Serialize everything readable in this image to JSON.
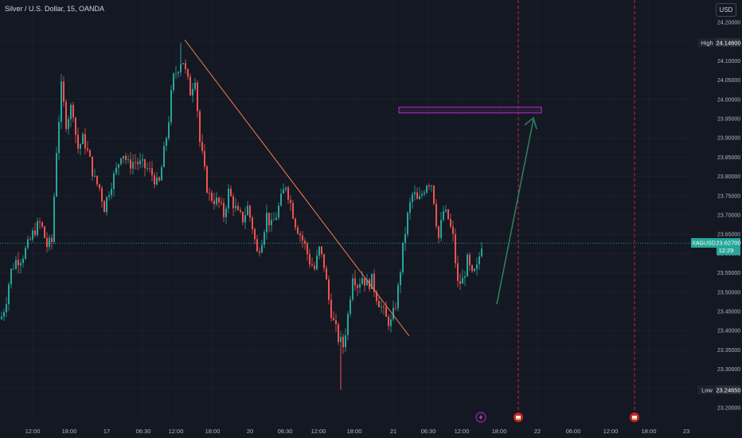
{
  "symbol_title": "Silver / U.S. Dollar, 15, OANDA",
  "currency_button": "USD",
  "ticker_label": "XAGUSD",
  "price_labels": {
    "high_tag": "High",
    "high_value": "24.14600",
    "low_tag": "Low",
    "low_value": "23.24650",
    "last_value": "23.62700",
    "countdown": "12:29"
  },
  "colors": {
    "background": "#141823",
    "grid": "#1f2330",
    "up": "#26a69a",
    "down": "#ef5350",
    "trendline": "#f57c54",
    "zone": "#9c27b0",
    "arrow": "#2e7d5b",
    "event_line": "#c62828",
    "axis_text": "#b2b5be",
    "last_price_bg": "#26a69a"
  },
  "icons": {
    "flash_event": "lightning-icon",
    "flag_event": "flag-icon"
  },
  "chart_data": {
    "type": "candlestick",
    "instrument": "XAGUSD",
    "interval": "15",
    "y_ticks": [
      "24.20000",
      "24.15000",
      "24.10000",
      "24.05000",
      "24.00000",
      "23.95000",
      "23.90000",
      "23.85000",
      "23.80000",
      "23.75000",
      "23.70000",
      "23.65000",
      "23.60000",
      "23.55000",
      "23.50000",
      "23.45000",
      "23.40000",
      "23.35000",
      "23.30000",
      "23.25000",
      "23.20000"
    ],
    "ylim": [
      23.18,
      24.225
    ],
    "x_ticks": [
      "12:00",
      "18:00",
      "17",
      "06:30",
      "12:00",
      "18:00",
      "20",
      "06:30",
      "12:00",
      "18:00",
      "21",
      "06:30",
      "12:00",
      "18:00",
      "22",
      "06:00",
      "12:00",
      "18:00",
      "23"
    ],
    "high": 24.146,
    "low": 23.2465,
    "last": 23.627,
    "close_path": [
      [
        0,
        23.43
      ],
      [
        6,
        23.47
      ],
      [
        12,
        23.55
      ],
      [
        18,
        23.58
      ],
      [
        26,
        23.59
      ],
      [
        34,
        23.62
      ],
      [
        42,
        23.66
      ],
      [
        50,
        23.68
      ],
      [
        58,
        23.62
      ],
      [
        64,
        23.63
      ],
      [
        70,
        23.87
      ],
      [
        76,
        24.03
      ],
      [
        82,
        23.94
      ],
      [
        90,
        23.99
      ],
      [
        96,
        23.87
      ],
      [
        104,
        23.9
      ],
      [
        112,
        23.84
      ],
      [
        118,
        23.79
      ],
      [
        124,
        23.77
      ],
      [
        130,
        23.72
      ],
      [
        138,
        23.78
      ],
      [
        146,
        23.82
      ],
      [
        152,
        23.87
      ],
      [
        160,
        23.83
      ],
      [
        168,
        23.84
      ],
      [
        176,
        23.83
      ],
      [
        184,
        23.82
      ],
      [
        192,
        23.8
      ],
      [
        198,
        23.77
      ],
      [
        204,
        23.85
      ],
      [
        210,
        23.93
      ],
      [
        216,
        24.05
      ],
      [
        222,
        24.08
      ],
      [
        228,
        24.11
      ],
      [
        232,
        24.07
      ],
      [
        238,
        24.02
      ],
      [
        244,
        24.06
      ],
      [
        250,
        23.89
      ],
      [
        254,
        23.84
      ],
      [
        258,
        23.78
      ],
      [
        262,
        23.75
      ],
      [
        268,
        23.74
      ],
      [
        274,
        23.73
      ],
      [
        280,
        23.7
      ],
      [
        286,
        23.76
      ],
      [
        292,
        23.73
      ],
      [
        298,
        23.7
      ],
      [
        304,
        23.69
      ],
      [
        310,
        23.72
      ],
      [
        316,
        23.67
      ],
      [
        322,
        23.6
      ],
      [
        328,
        23.64
      ],
      [
        334,
        23.7
      ],
      [
        340,
        23.67
      ],
      [
        346,
        23.7
      ],
      [
        352,
        23.74
      ],
      [
        358,
        23.78
      ],
      [
        364,
        23.73
      ],
      [
        370,
        23.68
      ],
      [
        376,
        23.65
      ],
      [
        382,
        23.62
      ],
      [
        388,
        23.58
      ],
      [
        394,
        23.56
      ],
      [
        400,
        23.61
      ],
      [
        406,
        23.57
      ],
      [
        412,
        23.48
      ],
      [
        418,
        23.42
      ],
      [
        424,
        23.38
      ],
      [
        430,
        23.36
      ],
      [
        436,
        23.44
      ],
      [
        442,
        23.55
      ],
      [
        448,
        23.52
      ],
      [
        454,
        23.54
      ],
      [
        460,
        23.52
      ],
      [
        466,
        23.53
      ],
      [
        472,
        23.49
      ],
      [
        478,
        23.46
      ],
      [
        484,
        23.43
      ],
      [
        490,
        23.42
      ],
      [
        494,
        23.45
      ],
      [
        498,
        23.49
      ],
      [
        502,
        23.56
      ],
      [
        506,
        23.63
      ],
      [
        512,
        23.71
      ],
      [
        518,
        23.76
      ],
      [
        524,
        23.73
      ],
      [
        530,
        23.76
      ],
      [
        536,
        23.79
      ],
      [
        542,
        23.78
      ],
      [
        546,
        23.7
      ],
      [
        550,
        23.64
      ],
      [
        556,
        23.71
      ],
      [
        562,
        23.69
      ],
      [
        568,
        23.64
      ],
      [
        574,
        23.52
      ],
      [
        580,
        23.53
      ],
      [
        586,
        23.58
      ],
      [
        592,
        23.54
      ],
      [
        598,
        23.56
      ],
      [
        604,
        23.627
      ]
    ],
    "trendline": {
      "from": [
        "16 12:00",
        24.16
      ],
      "to": [
        "21 00:00",
        23.39
      ]
    },
    "target_zone": {
      "top": 23.98,
      "bottom": 23.965
    },
    "projection_arrow": {
      "from": 23.44,
      "to": 23.96
    }
  }
}
